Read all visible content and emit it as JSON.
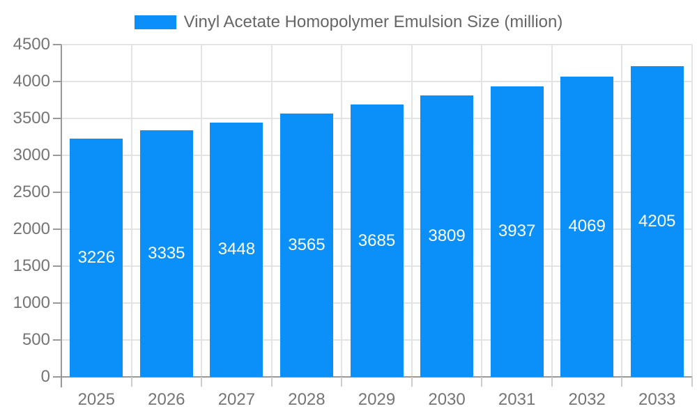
{
  "legend": {
    "label": "Vinyl Acetate Homopolymer Emulsion Size (million)"
  },
  "chart_data": {
    "type": "bar",
    "title": "Vinyl Acetate Homopolymer Emulsion Size (million)",
    "categories": [
      "2025",
      "2026",
      "2027",
      "2028",
      "2029",
      "2030",
      "2031",
      "2032",
      "2033"
    ],
    "values": [
      3226,
      3335,
      3448,
      3565,
      3685,
      3809,
      3937,
      4069,
      4205
    ],
    "data_labels_visible": true,
    "xlabel": "",
    "ylabel": "",
    "ylim": [
      0,
      4500
    ],
    "yticks": [
      0,
      500,
      1000,
      1500,
      2000,
      2500,
      3000,
      3500,
      4000,
      4500
    ],
    "grid": true,
    "legend_position": "top-center",
    "colors": {
      "bar": "#0a90f8",
      "bar_label": "#ffffff",
      "axis_text": "#757575",
      "title_text": "#666666",
      "gridline": "#e3e3e3",
      "axis_line": "#999999",
      "boundary_tick": "#cccccc",
      "background": "#ffffff"
    }
  }
}
